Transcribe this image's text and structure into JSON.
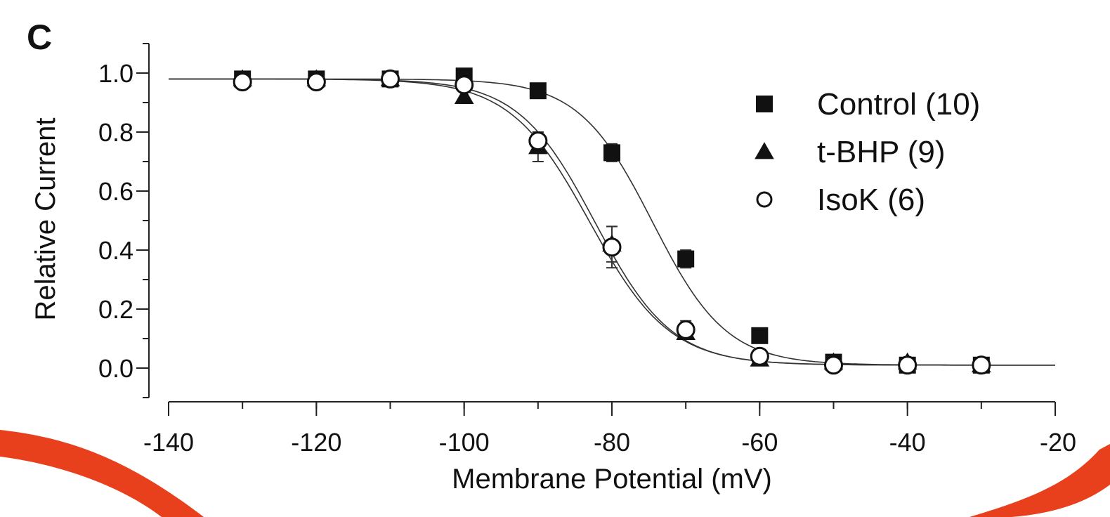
{
  "panel_label": "C",
  "chart_data": {
    "type": "scatter",
    "title": "",
    "xlabel": "Membrane Potential (mV)",
    "ylabel": "Relative Current",
    "xlim": [
      -140,
      -20
    ],
    "ylim": [
      -0.1,
      1.1
    ],
    "x_ticks": [
      -140,
      -120,
      -100,
      -80,
      -60,
      -40,
      -20
    ],
    "x_tick_labels": [
      "-140",
      "-120",
      "-100",
      "-80",
      "-60",
      "-40",
      "-20"
    ],
    "y_ticks": [
      0.0,
      0.2,
      0.4,
      0.6,
      0.8,
      1.0
    ],
    "y_tick_labels": [
      "0.0",
      "0.2",
      "0.4",
      "0.6",
      "0.8",
      "1.0"
    ],
    "grid": false,
    "legend_position": "top-right",
    "series": [
      {
        "name": "Control (10)",
        "marker": "filled-square",
        "x": [
          -130,
          -120,
          -110,
          -100,
          -90,
          -80,
          -70,
          -60,
          -50,
          -40,
          -30
        ],
        "y": [
          0.98,
          0.98,
          0.98,
          0.99,
          0.94,
          0.73,
          0.37,
          0.11,
          0.02,
          0.01,
          0.01
        ],
        "err": [
          0.01,
          0.01,
          0.01,
          0.01,
          0.01,
          0.03,
          0.03,
          0.01,
          0.01,
          0.01,
          0.01
        ],
        "fit": {
          "v_half": -74.5,
          "slope": 5.0,
          "top": 0.98,
          "bottom": 0.01
        }
      },
      {
        "name": "t-BHP (9)",
        "marker": "filled-triangle",
        "x": [
          -130,
          -120,
          -110,
          -100,
          -90,
          -80,
          -70,
          -60,
          -50,
          -40,
          -30
        ],
        "y": [
          0.98,
          0.98,
          0.98,
          0.92,
          0.75,
          0.42,
          0.12,
          0.03,
          0.02,
          0.02,
          0.01
        ],
        "err": [
          0.01,
          0.01,
          0.01,
          0.02,
          0.05,
          0.06,
          0.02,
          0.01,
          0.01,
          0.01,
          0.01
        ],
        "fit": {
          "v_half": -83.0,
          "slope": 5.4,
          "top": 0.98,
          "bottom": 0.01
        }
      },
      {
        "name": "IsoK (6)",
        "marker": "open-circle",
        "x": [
          -130,
          -120,
          -110,
          -100,
          -90,
          -80,
          -70,
          -60,
          -50,
          -40,
          -30
        ],
        "y": [
          0.97,
          0.97,
          0.98,
          0.96,
          0.77,
          0.41,
          0.13,
          0.04,
          0.01,
          0.01,
          0.01
        ],
        "err": [
          0.01,
          0.01,
          0.01,
          0.02,
          0.03,
          0.07,
          0.03,
          0.01,
          0.01,
          0.01,
          0.01
        ],
        "fit": {
          "v_half": -82.3,
          "slope": 5.2,
          "top": 0.98,
          "bottom": 0.01
        }
      }
    ]
  },
  "annotation": {
    "color": "#e8401c"
  }
}
